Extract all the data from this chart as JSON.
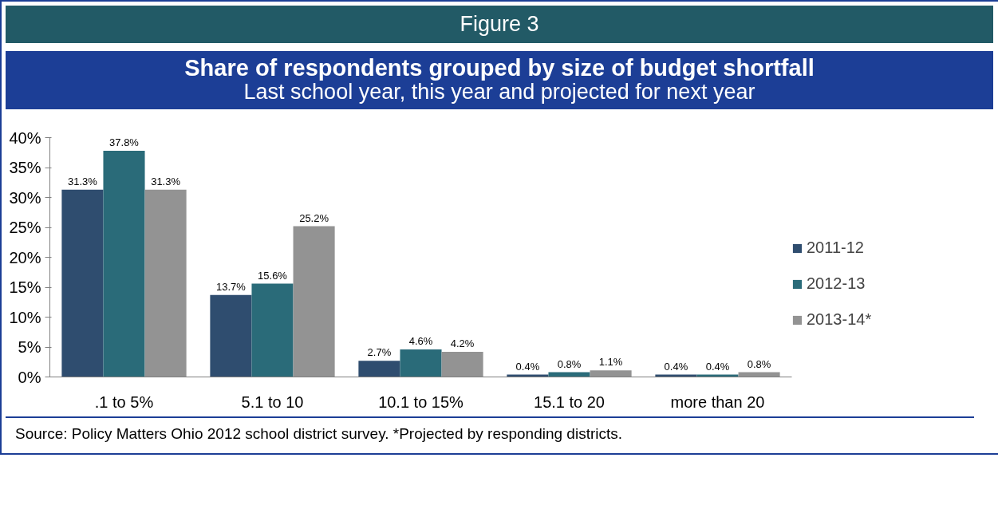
{
  "chart_data": {
    "type": "bar",
    "title": "Figure 3",
    "subtitle": "Share of respondents grouped by size of budget shortfall\nLast school year, this year and projected for next year",
    "categories": [
      ".1 to 5%",
      "5.1 to 10",
      "10.1 to 15%",
      "15.1 to 20",
      "more than 20"
    ],
    "series": [
      {
        "name": "2011-12",
        "color": "#2f4d6f",
        "values": [
          31.3,
          13.7,
          2.7,
          0.4,
          0.4
        ],
        "value_labels": [
          "31.3%",
          "13.7%",
          "2.7%",
          "0.4%",
          "0.4%"
        ]
      },
      {
        "name": "2012-13",
        "color": "#2a6b79",
        "values": [
          37.8,
          15.6,
          4.6,
          0.8,
          0.4
        ],
        "value_labels": [
          "37.8%",
          "15.6%",
          "4.6%",
          "0.8%",
          "0.4%"
        ]
      },
      {
        "name": "2013-14*",
        "color": "#939393",
        "values": [
          31.3,
          25.2,
          4.2,
          1.1,
          0.8
        ],
        "value_labels": [
          "31.3%",
          "25.2%",
          "4.2%",
          "1.1%",
          "0.8%"
        ]
      }
    ],
    "ylim": [
      0,
      40
    ],
    "yticks": [
      {
        "value": 0,
        "label": "0%"
      },
      {
        "value": 5,
        "label": "5%"
      },
      {
        "value": 10,
        "label": "10%"
      },
      {
        "value": 15,
        "label": "15%"
      },
      {
        "value": 20,
        "label": "20%"
      },
      {
        "value": 25,
        "label": "25%"
      },
      {
        "value": 30,
        "label": "30%"
      },
      {
        "value": 35,
        "label": "35%"
      },
      {
        "value": 40,
        "label": "40%"
      }
    ],
    "grid": false,
    "legend": "right",
    "annotations": [
      "Source:  Policy Matters Ohio 2012 school district survey. *Projected by responding districts."
    ]
  }
}
